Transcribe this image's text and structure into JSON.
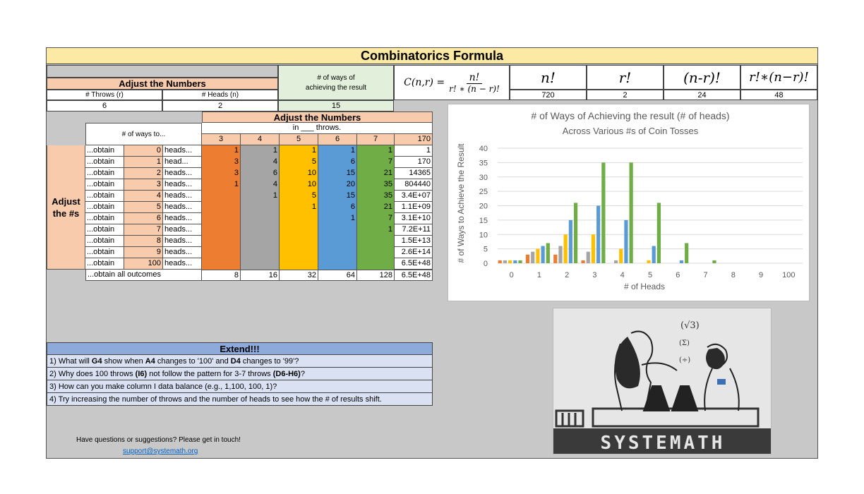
{
  "title": "Combinatorics Formula",
  "inputs": {
    "adjust_label": "Adjust the Numbers",
    "throws_header": "# Throws (r)",
    "heads_header": "# Heads (n)",
    "throws_value": "6",
    "heads_value": "2",
    "ways_header_line1": "# of ways of",
    "ways_header_line2": "achieving the result",
    "ways_value": "15"
  },
  "formula": {
    "lhs": "C(n,r) =",
    "numerator": "n!",
    "denominator": "r! ∗ (n − r)!"
  },
  "factorials": {
    "headers": [
      "n!",
      "r!",
      "(n-r)!",
      "r!∗(n−r)!"
    ],
    "values": [
      "720",
      "2",
      "24",
      "48"
    ]
  },
  "table": {
    "adjust_label": "Adjust the Numbers",
    "ways_to": "# of ways to...",
    "in_throws": "in ___ throws.",
    "side_label_line1": "Adjust",
    "side_label_line2": "the #s",
    "columns": [
      "3",
      "4",
      "5",
      "6",
      "7",
      "170"
    ],
    "rows": [
      {
        "obtain": "...obtain",
        "n": "0",
        "unit": "heads...",
        "vals": [
          "1",
          "1",
          "1",
          "1",
          "1",
          "1"
        ]
      },
      {
        "obtain": "...obtain",
        "n": "1",
        "unit": "head...",
        "vals": [
          "3",
          "4",
          "5",
          "6",
          "7",
          "170"
        ]
      },
      {
        "obtain": "...obtain",
        "n": "2",
        "unit": "heads...",
        "vals": [
          "3",
          "6",
          "10",
          "15",
          "21",
          "14365"
        ]
      },
      {
        "obtain": "...obtain",
        "n": "3",
        "unit": "heads...",
        "vals": [
          "1",
          "4",
          "10",
          "20",
          "35",
          "804440"
        ]
      },
      {
        "obtain": "...obtain",
        "n": "4",
        "unit": "heads...",
        "vals": [
          "",
          "1",
          "5",
          "15",
          "35",
          "3.4E+07"
        ]
      },
      {
        "obtain": "...obtain",
        "n": "5",
        "unit": "heads...",
        "vals": [
          "",
          "",
          "1",
          "6",
          "21",
          "1.1E+09"
        ]
      },
      {
        "obtain": "...obtain",
        "n": "6",
        "unit": "heads...",
        "vals": [
          "",
          "",
          "",
          "1",
          "7",
          "3.1E+10"
        ]
      },
      {
        "obtain": "...obtain",
        "n": "7",
        "unit": "heads...",
        "vals": [
          "",
          "",
          "",
          "",
          "1",
          "7.2E+11"
        ]
      },
      {
        "obtain": "...obtain",
        "n": "8",
        "unit": "heads...",
        "vals": [
          "",
          "",
          "",
          "",
          "",
          "1.5E+13"
        ]
      },
      {
        "obtain": "...obtain",
        "n": "9",
        "unit": "heads...",
        "vals": [
          "",
          "",
          "",
          "",
          "",
          "2.6E+14"
        ]
      },
      {
        "obtain": "...obtain",
        "n": "100",
        "unit": "heads...",
        "vals": [
          "",
          "",
          "",
          "",
          "",
          "6.5E+48"
        ]
      }
    ],
    "total_label": "...obtain all outcomes",
    "totals": [
      "8",
      "16",
      "32",
      "64",
      "128",
      "6.5E+48"
    ]
  },
  "chart_data": {
    "type": "bar",
    "title": "# of Ways of Achieving the result (# of heads)",
    "subtitle": "Across Various #s of Coin Tosses",
    "xlabel": "# of Heads",
    "ylabel": "# of Ways to Achieve the Result",
    "ylim": [
      0,
      40
    ],
    "yticks": [
      0,
      5,
      10,
      15,
      20,
      25,
      30,
      35,
      40
    ],
    "grid": true,
    "categories": [
      "0",
      "1",
      "2",
      "3",
      "4",
      "5",
      "6",
      "7",
      "8",
      "9",
      "100"
    ],
    "series": [
      {
        "values": [
          1,
          3,
          3,
          1,
          0,
          0,
          0,
          0,
          0,
          0,
          0
        ],
        "color": "#ed7d31"
      },
      {
        "values": [
          1,
          4,
          6,
          4,
          1,
          0,
          0,
          0,
          0,
          0,
          0
        ],
        "color": "#a5a5a5"
      },
      {
        "values": [
          1,
          5,
          10,
          10,
          5,
          1,
          0,
          0,
          0,
          0,
          0
        ],
        "color": "#ffc000"
      },
      {
        "values": [
          1,
          6,
          15,
          20,
          15,
          6,
          1,
          0,
          0,
          0,
          0
        ],
        "color": "#5b9bd5"
      },
      {
        "values": [
          1,
          7,
          21,
          35,
          35,
          21,
          7,
          1,
          0,
          0,
          0
        ],
        "color": "#70ad47"
      }
    ]
  },
  "extend": {
    "title": "Extend!!!",
    "lines": [
      [
        "1) What will ",
        "G4",
        " show when ",
        "A4",
        " changes to '100' and ",
        "D4",
        " changes to '99'?"
      ],
      [
        "2) Why does 100 throws ",
        "(I6)",
        " not follow the pattern for 3-7 throws ",
        "(D6-H6)",
        "?"
      ],
      [
        "3) How can you make column I data balance (e.g., 1,100, 100, 1)?"
      ],
      [
        "4) Try increasing the number of throws and the number of heads to see how the # of results shift."
      ]
    ]
  },
  "contact": {
    "text": "Have questions or suggestions? Please get in touch!",
    "email": "support@systemath.org"
  },
  "logo": {
    "brand": "SYSTEMATH",
    "symbols": [
      "(√3)",
      "(Σ)",
      "(÷)"
    ]
  },
  "colors": {
    "title_bg": "#fce9a4",
    "peach": "#f8cbad",
    "green_light": "#e2efda",
    "extend_head": "#8eaadb",
    "extend_body": "#d9e1f2",
    "sheet_bg": "#c8c8c8"
  }
}
